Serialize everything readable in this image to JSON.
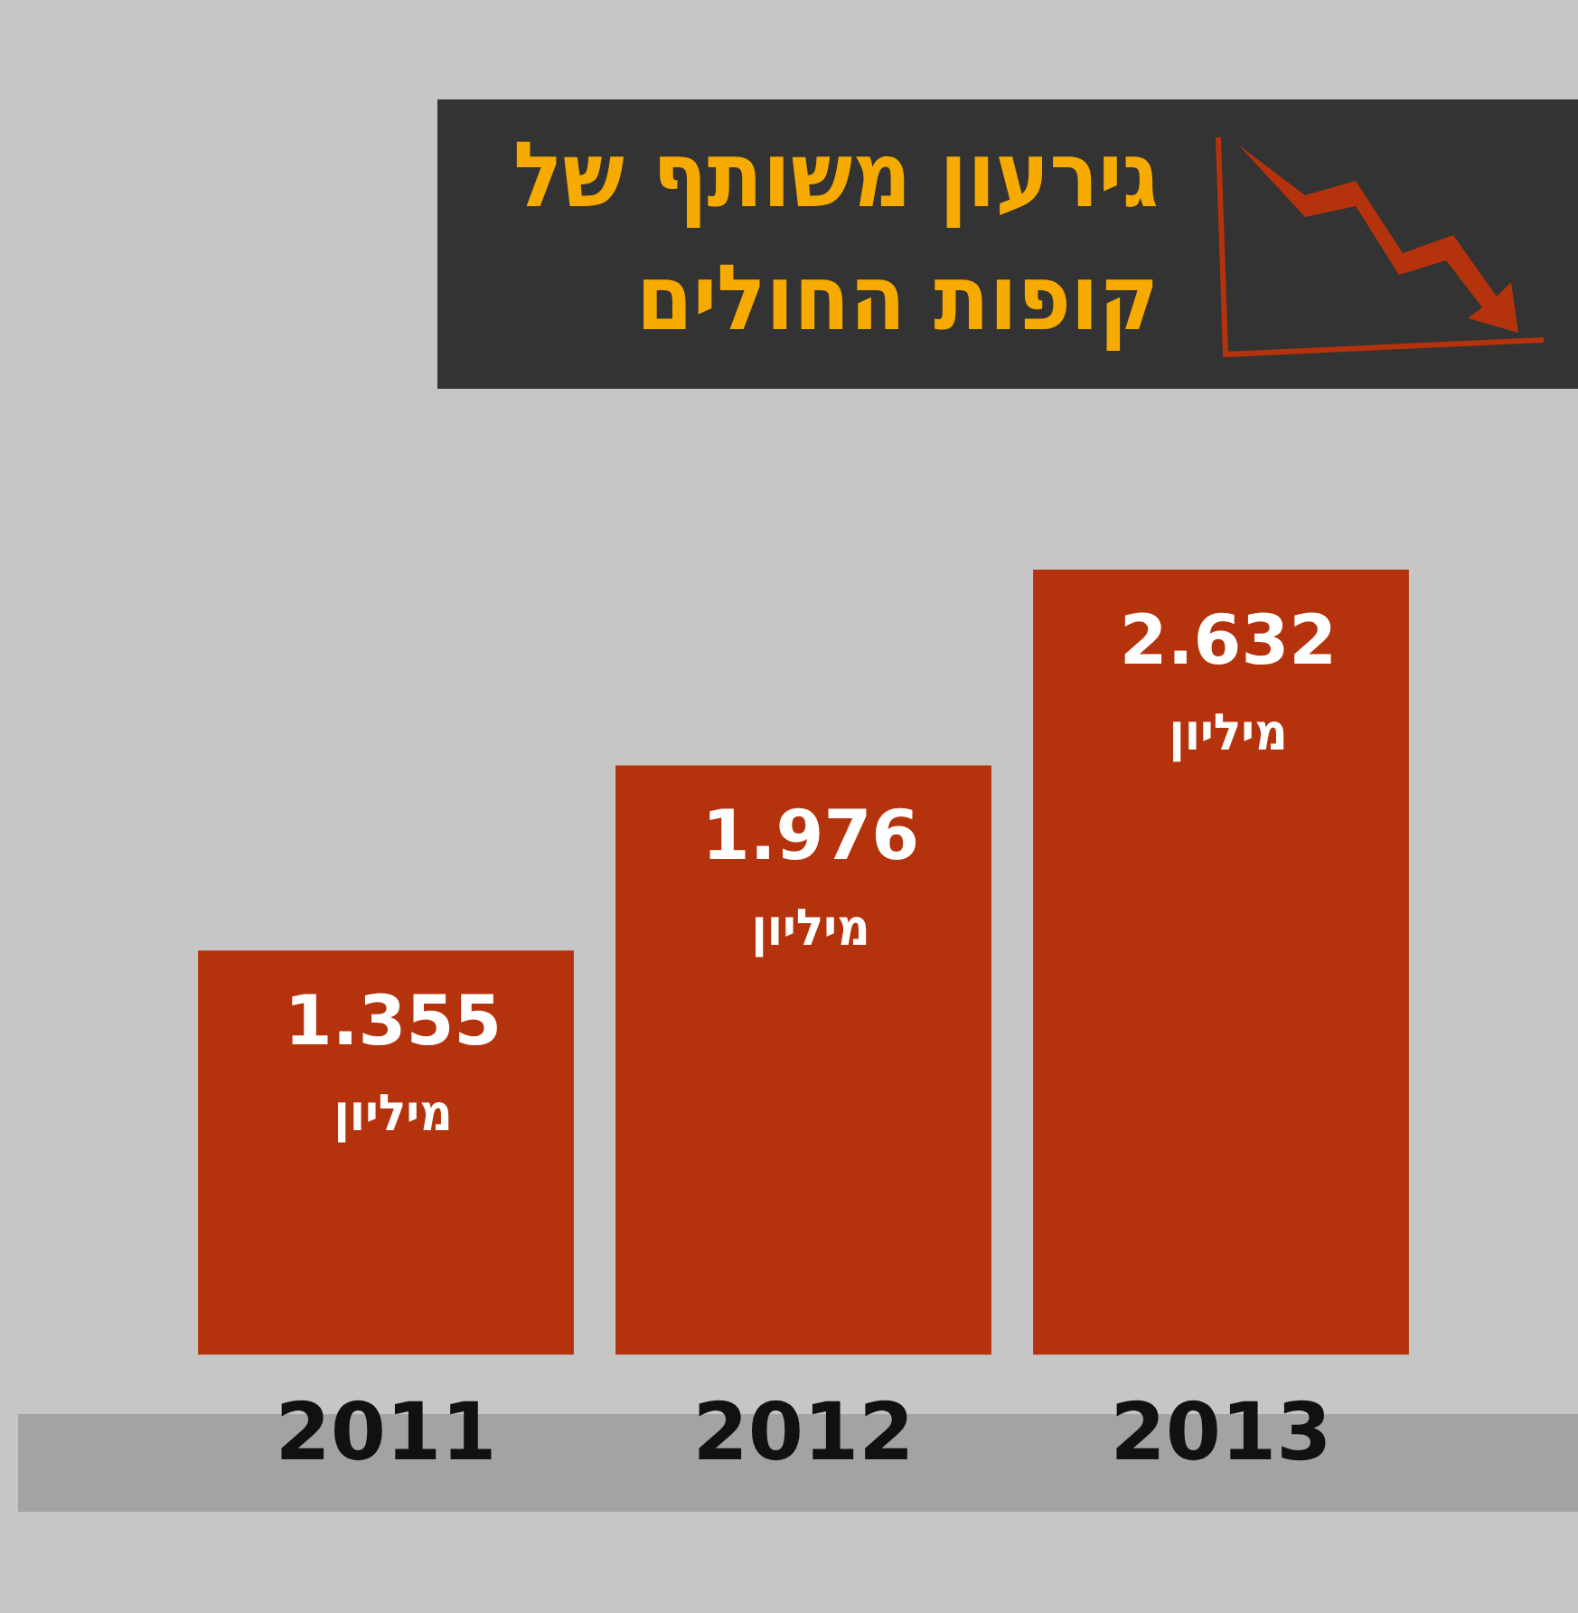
{
  "chart_data": {
    "type": "bar",
    "title": "גירעון משותף של קופות החולים",
    "categories": [
      "2011",
      "2012",
      "2013"
    ],
    "values": [
      1.355,
      1.976,
      2.632
    ],
    "value_labels": [
      "1.355\nמיליון",
      "1.976\nמיליון",
      "2.632\nמיליון"
    ],
    "color": "#b5330c",
    "tick_labels": "x",
    "grid": false,
    "legend": false
  }
}
